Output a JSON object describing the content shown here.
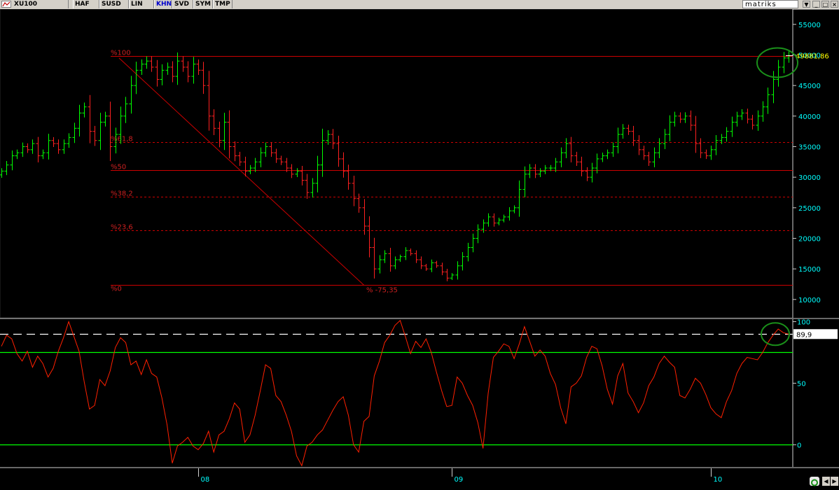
{
  "window": {
    "symbol": "XU100",
    "buttons": [
      "HAF",
      "SUSD",
      "LIN",
      "KHN",
      "SVD",
      "SYM",
      "TMP"
    ],
    "active_button": "KHN",
    "brand": "matriks",
    "controls": [
      "▼",
      "_",
      "□",
      "×"
    ]
  },
  "colors": {
    "background": "#000000",
    "up_bar": "#00ff00",
    "down_bar": "#ff2020",
    "fib_line": "#cc0000",
    "fib_label": "#cc2020",
    "axis_text": "#00ffff",
    "rsi_line": "#ff2000",
    "guide_line": "#00ff00",
    "price_label": "#ffff00",
    "highlight_circle": "#1a8f1a"
  },
  "chart_data": [
    {
      "type": "ohlc",
      "name": "price",
      "yticks": [
        10000,
        15000,
        20000,
        25000,
        30000,
        35000,
        40000,
        45000,
        50000,
        55000
      ],
      "ylim": [
        7000,
        57500
      ],
      "last_value": 49881.86,
      "last_value_label": "49881,86",
      "x_period_labels": [
        "08",
        "09",
        "10"
      ],
      "fibonacci": [
        {
          "label": "%100",
          "value": 49881.86,
          "style": "solid"
        },
        {
          "label": "%61,8",
          "value": 35700,
          "style": "dashed"
        },
        {
          "label": "%50",
          "value": 31200,
          "style": "solid"
        },
        {
          "label": "%38,2",
          "value": 26800,
          "style": "dashed"
        },
        {
          "label": "%23,6",
          "value": 21300,
          "style": "dashed"
        },
        {
          "label": "%0",
          "value": 12400,
          "style": "solid"
        }
      ],
      "trend_annotation": {
        "label": "% -75,35",
        "from_value": 49500,
        "to_value": 12300
      },
      "series_closes": [
        31000,
        32000,
        33500,
        34000,
        35000,
        34500,
        35500,
        33500,
        34000,
        36000,
        35500,
        34500,
        35500,
        36500,
        38000,
        40500,
        41500,
        37500,
        36000,
        39000,
        40000,
        35000,
        37000,
        40000,
        42000,
        45000,
        47500,
        48500,
        49000,
        48000,
        46000,
        47500,
        48000,
        46500,
        49000,
        48000,
        46500,
        48500,
        47500,
        45000,
        40000,
        38000,
        36000,
        39000,
        35000,
        33500,
        32500,
        31000,
        31500,
        32500,
        34000,
        35000,
        34000,
        33000,
        32500,
        31500,
        30500,
        31000,
        29500,
        27500,
        29000,
        32000,
        36000,
        37000,
        35500,
        33000,
        31000,
        29000,
        26500,
        25000,
        22000,
        18500,
        15000,
        16500,
        17500,
        15500,
        16500,
        17000,
        18000,
        17500,
        16500,
        15500,
        15000,
        16000,
        15500,
        14500,
        13500,
        14000,
        15500,
        17000,
        18500,
        20000,
        21500,
        22500,
        23500,
        22500,
        23000,
        23500,
        24500,
        25000,
        28000,
        30500,
        31500,
        30500,
        31000,
        31500,
        31500,
        32500,
        34000,
        35500,
        33500,
        32500,
        31000,
        30000,
        31500,
        33000,
        33500,
        34000,
        35000,
        37000,
        38000,
        37500,
        36000,
        34500,
        33500,
        32500,
        34000,
        35500,
        37000,
        39000,
        40000,
        39500,
        40000,
        38500,
        35500,
        34000,
        33500,
        34500,
        36000,
        36500,
        37500,
        39000,
        40000,
        40500,
        39500,
        38500,
        40000,
        41500,
        43500,
        46000,
        48000,
        49500,
        49881.86
      ]
    },
    {
      "type": "line",
      "name": "rsi",
      "yticks": [
        0,
        50,
        100
      ],
      "ylim": [
        -18,
        102
      ],
      "last_value": 89.9,
      "last_value_label": "89,9",
      "reference_levels": [
        {
          "value": 90,
          "style": "dashed",
          "color": "#ffffff"
        },
        {
          "value": 75,
          "style": "solid",
          "color": "#00ff00"
        },
        {
          "value": 0,
          "style": "solid",
          "color": "#00ff00"
        }
      ],
      "x_period_labels": [
        "08",
        "09",
        "10"
      ],
      "values": [
        80,
        89,
        86,
        74,
        68,
        76,
        63,
        72,
        66,
        55,
        62,
        76,
        87,
        100,
        88,
        76,
        51,
        29,
        32,
        53,
        48,
        60,
        79,
        87,
        83,
        65,
        68,
        57,
        69,
        58,
        55,
        38,
        16,
        -15,
        -1,
        2,
        6,
        -1,
        -4,
        1,
        11,
        -6,
        8,
        11,
        21,
        34,
        29,
        2,
        8,
        24,
        44,
        65,
        62,
        40,
        35,
        24,
        11,
        -9,
        -17,
        -1,
        2,
        8,
        12,
        20,
        28,
        35,
        39,
        24,
        0,
        -6,
        19,
        23,
        56,
        68,
        83,
        89,
        97,
        101,
        88,
        74,
        84,
        79,
        86,
        75,
        59,
        44,
        31,
        32,
        55,
        50,
        40,
        32,
        18,
        -3,
        42,
        71,
        76,
        82,
        80,
        70,
        82,
        96,
        84,
        72,
        77,
        72,
        58,
        49,
        30,
        17,
        47,
        50,
        56,
        71,
        80,
        78,
        64,
        45,
        33,
        56,
        66,
        42,
        35,
        26,
        34,
        48,
        55,
        66,
        72,
        67,
        63,
        40,
        38,
        45,
        54,
        50,
        41,
        30,
        25,
        22,
        35,
        44,
        58,
        66,
        71,
        70,
        69,
        75,
        83,
        89,
        94,
        91,
        89.9
      ]
    }
  ]
}
